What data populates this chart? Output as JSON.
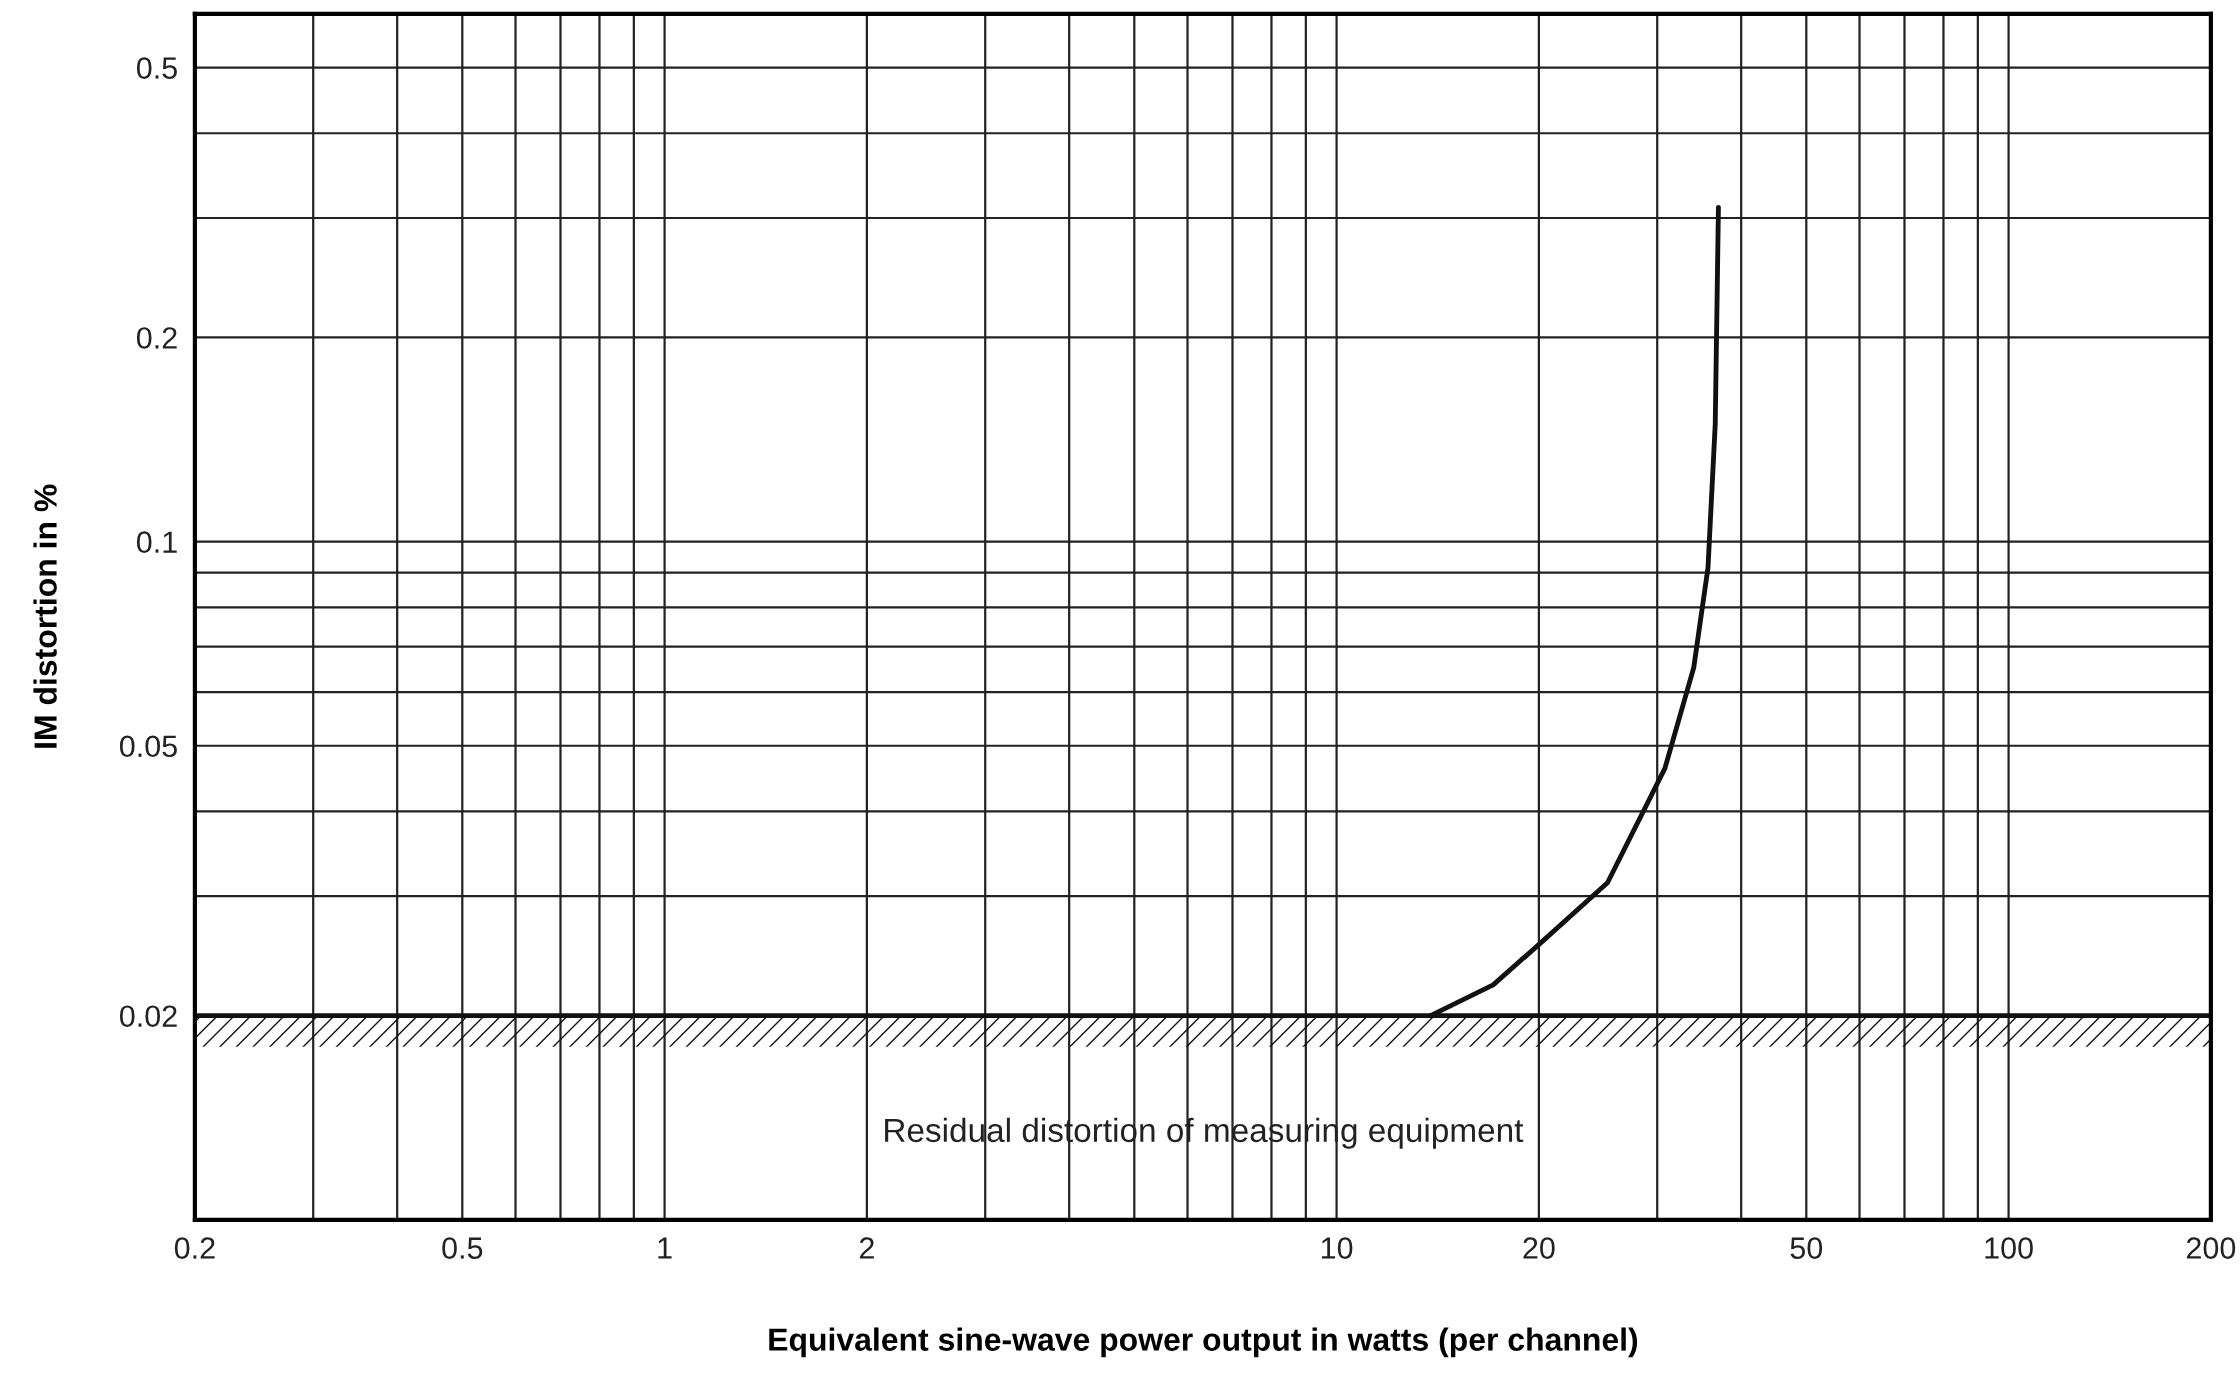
{
  "chart_data": {
    "type": "line",
    "xlabel": "Equivalent sine-wave power output in watts (per channel)",
    "ylabel": "IM distortion in %",
    "log": "xy",
    "grid": true,
    "legend": false,
    "marker": "none",
    "line_style": "solid",
    "series": [
      {
        "color": "#111111",
        "x": [
          13.8,
          17.1,
          20.3,
          25.3,
          30.8,
          34.0,
          35.7,
          36.6,
          37.0
        ],
        "values": [
          0.02,
          0.0222,
          0.0258,
          0.0314,
          0.0463,
          0.0652,
          0.0915,
          0.149,
          0.311
        ]
      }
    ],
    "xlim": [
      0.2,
      200
    ],
    "ylim": [
      0.01,
      0.6
    ],
    "xticks": [
      0.2,
      {
        "value": 0.3,
        "label": null
      },
      {
        "value": 0.4,
        "label": null
      },
      0.5,
      {
        "value": 0.6,
        "label": null
      },
      {
        "value": 0.7,
        "label": null
      },
      {
        "value": 0.8,
        "label": null
      },
      {
        "value": 0.9,
        "label": null
      },
      1,
      2,
      {
        "value": 3,
        "label": null
      },
      {
        "value": 4,
        "label": null
      },
      {
        "value": 5,
        "label": null
      },
      {
        "value": 6,
        "label": null
      },
      {
        "value": 7,
        "label": null
      },
      {
        "value": 8,
        "label": null
      },
      {
        "value": 9,
        "label": null
      },
      10,
      20,
      {
        "value": 30,
        "label": null
      },
      {
        "value": 40,
        "label": null
      },
      50,
      {
        "value": 60,
        "label": null
      },
      {
        "value": 70,
        "label": null
      },
      {
        "value": 80,
        "label": null
      },
      {
        "value": 90,
        "label": null
      },
      100,
      200
    ],
    "yticks": [
      0.02,
      {
        "value": 0.03,
        "label": null
      },
      {
        "value": 0.04,
        "label": null
      },
      0.05,
      {
        "value": 0.06,
        "label": null
      },
      {
        "value": 0.07,
        "label": null
      },
      {
        "value": 0.08,
        "label": null
      },
      {
        "value": 0.09,
        "label": null
      },
      0.1,
      0.2,
      {
        "value": 0.3,
        "label": null
      },
      {
        "value": 0.4,
        "label": null
      },
      0.5
    ],
    "ref_lines": [
      {
        "axis": "y",
        "value": 0.02,
        "color": "#111111"
      }
    ],
    "bands": [
      {
        "axis": "y",
        "from": 0.018,
        "to": 0.02,
        "label": "Residual distortion of measuring equipment",
        "color": "#111111"
      }
    ]
  }
}
